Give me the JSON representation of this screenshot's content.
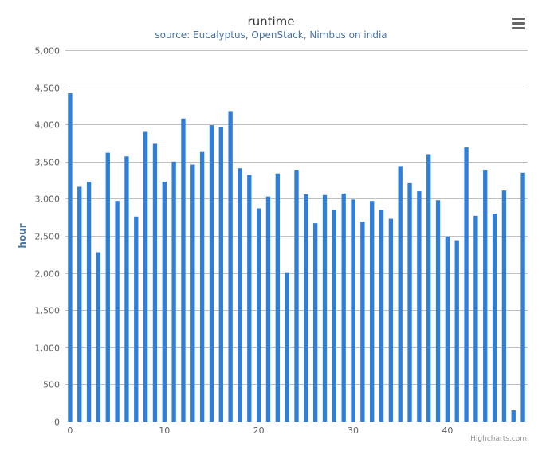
{
  "chart_data": {
    "type": "bar",
    "title": "runtime",
    "subtitle": "source: Eucalyptus, OpenStack, Nimbus on india",
    "xlabel": "",
    "ylabel": "hour",
    "x": [
      0,
      1,
      2,
      3,
      4,
      5,
      6,
      7,
      8,
      9,
      10,
      11,
      12,
      13,
      14,
      15,
      16,
      17,
      18,
      19,
      20,
      21,
      22,
      23,
      24,
      25,
      26,
      27,
      28,
      29,
      30,
      31,
      32,
      33,
      34,
      35,
      36,
      37,
      38,
      39,
      40,
      41,
      42,
      43,
      44,
      45,
      46,
      47,
      48
    ],
    "values": [
      4420,
      3160,
      3230,
      2280,
      3620,
      2970,
      3570,
      2760,
      3900,
      3740,
      3230,
      3500,
      4080,
      3460,
      3630,
      3990,
      3960,
      4180,
      3410,
      3320,
      2870,
      3030,
      3340,
      2010,
      3390,
      3060,
      2670,
      3050,
      2850,
      3070,
      2990,
      2690,
      2970,
      2850,
      2730,
      3440,
      3210,
      3100,
      3600,
      2980,
      2490,
      2440,
      3690,
      2770,
      3390,
      2800,
      3110,
      150,
      3350
    ],
    "ylim": [
      0,
      5000
    ],
    "yticks": [
      0,
      500,
      1000,
      1500,
      2000,
      2500,
      3000,
      3500,
      4000,
      4500,
      5000
    ],
    "ytick_labels": [
      "0",
      "500",
      "1,000",
      "1,500",
      "2,000",
      "2,500",
      "3,000",
      "3,500",
      "4,000",
      "4,500",
      "5,000"
    ],
    "xticks": [
      0,
      10,
      20,
      30,
      40
    ],
    "xtick_labels": [
      "0",
      "10",
      "20",
      "30",
      "40"
    ],
    "grid": true,
    "bar_color": "#2f7ed8",
    "credits": "Highcharts.com"
  },
  "ui": {
    "menu_icon": "hamburger-menu-icon"
  }
}
